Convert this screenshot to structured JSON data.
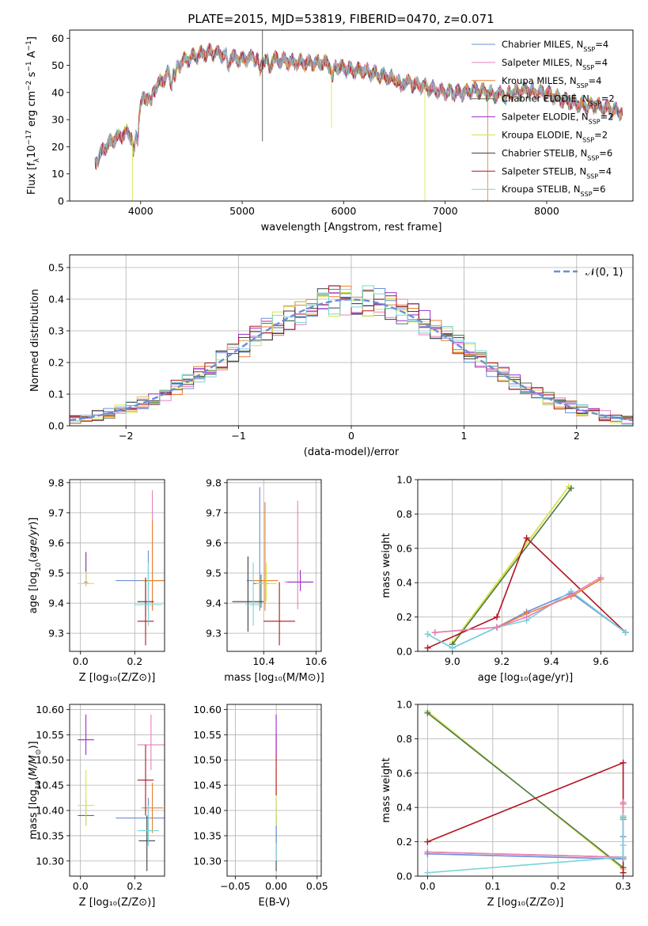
{
  "figure": {
    "title": "PLATE=2015, MJD=53819, FIBERID=0470, z=0.071"
  },
  "colors": {
    "Chabrier MILES": "#6c8ed6",
    "Salpeter MILES": "#e77fbe",
    "Kroupa MILES": "#e8802e",
    "Chabrier ELODIE": "#4e7a48",
    "Salpeter ELODIE": "#9b2bc6",
    "Kroupa ELODIE": "#d7e24a",
    "Chabrier STELIB": "#3d3d3d",
    "Salpeter STELIB": "#b3131f",
    "Kroupa STELIB": "#78d4d8"
  },
  "chart_data": [
    {
      "id": "spectrum",
      "type": "line",
      "xlabel": "wavelength [Angstrom, rest frame]",
      "ylabel": "Flux [f_λ10^-17 erg cm^-2 s^-1 A^-1]",
      "xlim": [
        3300,
        8850
      ],
      "ylim": [
        0,
        63
      ],
      "xticks": [
        4000,
        5000,
        6000,
        7000,
        8000
      ],
      "yticks": [
        0,
        10,
        20,
        30,
        40,
        50,
        60
      ],
      "grid": false,
      "legend_position": "top-right",
      "legend": [
        {
          "label": "Chabrier MILES, N",
          "sub": "SSP",
          "tail": "=4",
          "model": "Chabrier MILES"
        },
        {
          "label": "Salpeter MILES, N",
          "sub": "SSP",
          "tail": "=4",
          "model": "Salpeter MILES"
        },
        {
          "label": "Kroupa MILES, N",
          "sub": "SSP",
          "tail": "=4",
          "model": "Kroupa MILES"
        },
        {
          "label": "Chabrier ELODIE, N",
          "sub": "SSP",
          "tail": "=2",
          "model": "Chabrier ELODIE"
        },
        {
          "label": "Salpeter ELODIE, N",
          "sub": "SSP",
          "tail": "=2",
          "model": "Salpeter ELODIE"
        },
        {
          "label": "Kroupa ELODIE, N",
          "sub": "SSP",
          "tail": "=2",
          "model": "Kroupa ELODIE"
        },
        {
          "label": "Chabrier STELIB, N",
          "sub": "SSP",
          "tail": "=6",
          "model": "Chabrier STELIB"
        },
        {
          "label": "Salpeter STELIB, N",
          "sub": "SSP",
          "tail": "=4",
          "model": "Salpeter STELIB"
        },
        {
          "label": "Kroupa STELIB, N",
          "sub": "SSP",
          "tail": "=6",
          "model": "Kroupa STELIB"
        }
      ],
      "continuum": [
        [
          3550,
          14
        ],
        [
          3650,
          20
        ],
        [
          3750,
          23
        ],
        [
          3850,
          25
        ],
        [
          3920,
          24
        ],
        [
          3960,
          28
        ],
        [
          4000,
          36
        ],
        [
          4100,
          40
        ],
        [
          4200,
          44
        ],
        [
          4300,
          48
        ],
        [
          4400,
          51
        ],
        [
          4500,
          53
        ],
        [
          4600,
          54
        ],
        [
          4700,
          55
        ],
        [
          4800,
          54
        ],
        [
          4900,
          53
        ],
        [
          5000,
          52
        ],
        [
          5100,
          53
        ],
        [
          5200,
          52
        ],
        [
          5300,
          52
        ],
        [
          5400,
          52
        ],
        [
          5500,
          51
        ],
        [
          5600,
          51
        ],
        [
          5700,
          51
        ],
        [
          5800,
          51
        ],
        [
          5900,
          50
        ],
        [
          6000,
          49
        ],
        [
          6100,
          48
        ],
        [
          6200,
          48
        ],
        [
          6300,
          47
        ],
        [
          6400,
          46
        ],
        [
          6500,
          45
        ],
        [
          6600,
          44
        ],
        [
          6700,
          43
        ],
        [
          6800,
          42
        ],
        [
          6900,
          41
        ],
        [
          7000,
          40
        ],
        [
          7100,
          40
        ],
        [
          7200,
          40
        ],
        [
          7300,
          41
        ],
        [
          7400,
          40
        ],
        [
          7500,
          39
        ],
        [
          7600,
          40
        ],
        [
          7700,
          40
        ],
        [
          7800,
          41
        ],
        [
          7900,
          40
        ],
        [
          8000,
          40
        ],
        [
          8100,
          38
        ],
        [
          8200,
          37
        ],
        [
          8300,
          36
        ],
        [
          8400,
          35
        ],
        [
          8500,
          35
        ],
        [
          8600,
          34
        ],
        [
          8700,
          33
        ]
      ],
      "spikes": [
        {
          "x": 3920,
          "y_low": 0,
          "model": "Kroupa ELODIE"
        },
        {
          "x": 5200,
          "y_high": 63,
          "y_low": 22,
          "model": "Chabrier STELIB"
        },
        {
          "x": 5880,
          "y_low": 27,
          "model": "Kroupa ELODIE"
        },
        {
          "x": 6800,
          "y_low": 0,
          "model": "Kroupa ELODIE"
        },
        {
          "x": 7420,
          "y_low": 0,
          "model": "Kroupa MILES"
        }
      ]
    },
    {
      "id": "residuals",
      "type": "area",
      "xlabel": "(data-model)/error",
      "ylabel": "Normed distribution",
      "xlim": [
        -2.5,
        2.5
      ],
      "ylim": [
        0,
        0.54
      ],
      "xticks": [
        -2,
        -1,
        0,
        1,
        2
      ],
      "yticks": [
        0.0,
        0.1,
        0.2,
        0.3,
        0.4,
        0.5
      ],
      "grid": true,
      "legend_position": "top-right",
      "legend_label": "𝒩(0, 1)",
      "bin_width": 0.1,
      "gaussian": {
        "mu": 0,
        "sigma": 1,
        "color": "#6c8ed6"
      }
    },
    {
      "id": "age_vs_Z",
      "type": "scatter",
      "xlabel": "Z [log₁₀(Z/Z⊙)]",
      "ylabel": "age  [log₁₀(age/yr)]",
      "xlim": [
        -0.04,
        0.31
      ],
      "ylim": [
        9.24,
        9.81
      ],
      "xticks": [
        0.0,
        0.2
      ],
      "yticks": [
        9.3,
        9.4,
        9.5,
        9.6,
        9.7,
        9.8
      ],
      "grid": true,
      "points": [
        {
          "model": "Chabrier MILES",
          "x": 0.25,
          "xerr": 0.12,
          "y": 9.475,
          "yerr": [
            0.1,
            0.1
          ]
        },
        {
          "model": "Salpeter MILES",
          "x": 0.265,
          "xerr": 0.03,
          "y": 9.475,
          "yerr": [
            0.1,
            0.3
          ]
        },
        {
          "model": "Kroupa MILES",
          "x": 0.265,
          "xerr": 0.04,
          "y": 9.475,
          "yerr": [
            0.1,
            0.2
          ]
        },
        {
          "model": "Chabrier ELODIE",
          "x": 0.02,
          "xerr": 0.01,
          "y": 9.465,
          "yerr": [
            0.01,
            0.1
          ]
        },
        {
          "model": "Salpeter ELODIE",
          "x": 0.02,
          "xerr": 0.005,
          "y": 9.47,
          "yerr": [
            0.01,
            0.1
          ]
        },
        {
          "model": "Kroupa ELODIE",
          "x": 0.02,
          "xerr": 0.03,
          "y": 9.465,
          "yerr": [
            0.01,
            0.04
          ]
        },
        {
          "model": "Chabrier STELIB",
          "x": 0.24,
          "xerr": 0.03,
          "y": 9.405,
          "yerr": [
            0.05,
            0.08
          ]
        },
        {
          "model": "Salpeter STELIB",
          "x": 0.24,
          "xerr": 0.03,
          "y": 9.34,
          "yerr": [
            0.08,
            0.12
          ]
        },
        {
          "model": "Kroupa STELIB",
          "x": 0.25,
          "xerr": 0.05,
          "y": 9.395,
          "yerr": [
            0.07,
            0.14
          ]
        }
      ]
    },
    {
      "id": "age_vs_mass",
      "type": "scatter",
      "xlabel": "mass [log₁₀(M/M⊙)]",
      "ylabel": "",
      "xlim": [
        10.26,
        10.62
      ],
      "ylim": [
        9.24,
        9.81
      ],
      "xticks": [
        10.4,
        10.6
      ],
      "yticks": [
        9.3,
        9.4,
        9.5,
        9.6,
        9.7,
        9.8
      ],
      "grid": true,
      "points": [
        {
          "model": "Chabrier MILES",
          "x": 10.385,
          "xerr": 0.05,
          "y": 9.475,
          "yerr": [
            0.1,
            0.31
          ]
        },
        {
          "model": "Salpeter MILES",
          "x": 10.53,
          "xerr": 0.05,
          "y": 9.47,
          "yerr": [
            0.09,
            0.27
          ]
        },
        {
          "model": "Kroupa MILES",
          "x": 10.405,
          "xerr": 0.05,
          "y": 9.475,
          "yerr": [
            0.1,
            0.26
          ]
        },
        {
          "model": "Chabrier ELODIE",
          "x": 10.39,
          "xerr": 0.03,
          "y": 9.465,
          "yerr": [
            0.08,
            0.03
          ]
        },
        {
          "model": "Salpeter ELODIE",
          "x": 10.54,
          "xerr": 0.05,
          "y": 9.47,
          "yerr": [
            0.03,
            0.04
          ]
        },
        {
          "model": "Kroupa ELODIE",
          "x": 10.41,
          "xerr": 0.04,
          "y": 9.465,
          "yerr": [
            0.06,
            0.07
          ]
        },
        {
          "model": "Chabrier STELIB",
          "x": 10.34,
          "xerr": 0.06,
          "y": 9.405,
          "yerr": [
            0.1,
            0.15
          ]
        },
        {
          "model": "Salpeter STELIB",
          "x": 10.46,
          "xerr": 0.06,
          "y": 9.34,
          "yerr": [
            0.08,
            0.13
          ]
        },
        {
          "model": "Kroupa STELIB",
          "x": 10.36,
          "xerr": 0.03,
          "y": 9.395,
          "yerr": [
            0.07,
            0.14
          ]
        }
      ]
    },
    {
      "id": "weight_vs_age",
      "type": "line",
      "xlabel": "age  [log₁₀(age/yr)]",
      "ylabel": "mass weight",
      "xlim": [
        8.86,
        9.73
      ],
      "ylim": [
        0,
        1.0
      ],
      "xticks": [
        9.0,
        9.2,
        9.4,
        9.6
      ],
      "yticks": [
        0.0,
        0.2,
        0.4,
        0.6,
        0.8,
        1.0
      ],
      "grid": true,
      "series": [
        {
          "model": "Kroupa ELODIE",
          "x": [
            9.0,
            9.47,
            9.0
          ],
          "y": [
            0.04,
            0.96,
            0.05
          ]
        },
        {
          "model": "Chabrier ELODIE",
          "x": [
            9.0,
            9.48
          ],
          "y": [
            0.04,
            0.95
          ]
        },
        {
          "model": "Salpeter STELIB",
          "x": [
            8.9,
            9.18,
            9.3,
            9.7
          ],
          "y": [
            0.02,
            0.2,
            0.66,
            0.11
          ]
        },
        {
          "model": "Chabrier MILES",
          "x": [
            8.9,
            9.0,
            9.18,
            9.3,
            9.48,
            9.7
          ],
          "y": [
            0.1,
            0.02,
            0.14,
            0.23,
            0.34,
            0.11
          ]
        },
        {
          "model": "Kroupa STELIB",
          "x": [
            8.9,
            9.0,
            9.18,
            9.3,
            9.48,
            9.7
          ],
          "y": [
            0.1,
            0.02,
            0.14,
            0.18,
            0.35,
            0.11
          ]
        },
        {
          "model": "Kroupa MILES",
          "x": [
            8.93,
            9.18,
            9.3,
            9.48,
            9.6
          ],
          "y": [
            0.11,
            0.14,
            0.22,
            0.32,
            0.42
          ]
        },
        {
          "model": "Salpeter MILES",
          "x": [
            8.93,
            9.18,
            9.3,
            9.48,
            9.6
          ],
          "y": [
            0.11,
            0.14,
            0.2,
            0.33,
            0.43
          ]
        }
      ]
    },
    {
      "id": "mass_vs_Z",
      "type": "scatter",
      "xlabel": "Z [log₁₀(Z/Z⊙)]",
      "ylabel": "mass [log₁₀(M/M⊙)]",
      "xlim": [
        -0.04,
        0.31
      ],
      "ylim": [
        10.27,
        10.61
      ],
      "xticks": [
        0.0,
        0.2
      ],
      "yticks": [
        10.3,
        10.35,
        10.4,
        10.45,
        10.5,
        10.55,
        10.6
      ],
      "grid": true,
      "points": [
        {
          "model": "Chabrier MILES",
          "x": 0.25,
          "xerr": 0.12,
          "y": 10.385,
          "yerr": [
            0.05,
            0.04
          ]
        },
        {
          "model": "Salpeter MILES",
          "x": 0.26,
          "xerr": 0.05,
          "y": 10.53,
          "yerr": [
            0.05,
            0.06
          ]
        },
        {
          "model": "Kroupa MILES",
          "x": 0.265,
          "xerr": 0.04,
          "y": 10.405,
          "yerr": [
            0.05,
            0.05
          ]
        },
        {
          "model": "Chabrier ELODIE",
          "x": 0.02,
          "xerr": 0.03,
          "y": 10.39,
          "yerr": [
            0.02,
            0.03
          ]
        },
        {
          "model": "Salpeter ELODIE",
          "x": 0.02,
          "xerr": 0.03,
          "y": 10.54,
          "yerr": [
            0.03,
            0.05
          ]
        },
        {
          "model": "Kroupa ELODIE",
          "x": 0.02,
          "xerr": 0.03,
          "y": 10.41,
          "yerr": [
            0.04,
            0.07
          ]
        },
        {
          "model": "Chabrier STELIB",
          "x": 0.245,
          "xerr": 0.03,
          "y": 10.34,
          "yerr": [
            0.06,
            0.05
          ]
        },
        {
          "model": "Salpeter STELIB",
          "x": 0.24,
          "xerr": 0.03,
          "y": 10.46,
          "yerr": [
            0.07,
            0.07
          ]
        },
        {
          "model": "Kroupa STELIB",
          "x": 0.25,
          "xerr": 0.04,
          "y": 10.36,
          "yerr": [
            0.03,
            0.05
          ]
        }
      ]
    },
    {
      "id": "mass_vs_ebv",
      "type": "scatter",
      "xlabel": "E(B-V)",
      "ylabel": "",
      "xlim": [
        -0.06,
        0.055
      ],
      "ylim": [
        10.27,
        10.61
      ],
      "xticks": [
        -0.05,
        0.0,
        0.05
      ],
      "xtick_labels": [
        "−0.05",
        "0.00",
        "0.05"
      ],
      "yticks": [
        10.3,
        10.35,
        10.4,
        10.45,
        10.5,
        10.55,
        10.6
      ],
      "grid": true,
      "points": [
        {
          "model": "Chabrier STELIB",
          "x": 0.0,
          "y": 10.34,
          "yerr": [
            0.06,
            0.05
          ]
        },
        {
          "model": "Kroupa STELIB",
          "x": 0.0,
          "y": 10.36,
          "yerr": [
            0.06,
            0.05
          ]
        },
        {
          "model": "Chabrier MILES",
          "x": 0.0,
          "y": 10.385,
          "yerr": [
            0.05,
            0.04
          ]
        },
        {
          "model": "Kroupa ELODIE",
          "x": 0.0,
          "y": 10.41,
          "yerr": [
            0.04,
            0.07
          ]
        },
        {
          "model": "Salpeter STELIB",
          "x": 0.0,
          "y": 10.46,
          "yerr": [
            0.03,
            0.09
          ]
        },
        {
          "model": "Salpeter ELODIE",
          "x": 0.0,
          "y": 10.54,
          "yerr": [
            0.03,
            0.05
          ]
        }
      ]
    },
    {
      "id": "weight_vs_Z",
      "type": "line",
      "xlabel": "Z [log₁₀(Z/Z⊙)]",
      "ylabel": "mass weight",
      "xlim": [
        -0.015,
        0.315
      ],
      "ylim": [
        0,
        1.0
      ],
      "xticks": [
        0.0,
        0.1,
        0.2,
        0.3
      ],
      "yticks": [
        0.0,
        0.2,
        0.4,
        0.6,
        0.8,
        1.0
      ],
      "grid": true,
      "series": [
        {
          "model": "Kroupa ELODIE",
          "x": [
            0.0,
            0.3
          ],
          "y": [
            0.96,
            0.04
          ]
        },
        {
          "model": "Chabrier ELODIE",
          "x": [
            0.0,
            0.3
          ],
          "y": [
            0.95,
            0.05
          ]
        },
        {
          "model": "Salpeter STELIB",
          "x": [
            0.0,
            0.3,
            0.3,
            0.3
          ],
          "y": [
            0.2,
            0.66,
            0.11,
            0.02
          ]
        },
        {
          "model": "Kroupa MILES",
          "x": [
            0.0,
            0.3,
            0.3,
            0.3
          ],
          "y": [
            0.14,
            0.11,
            0.42,
            0.33
          ]
        },
        {
          "model": "Salpeter MILES",
          "x": [
            0.0,
            0.3,
            0.3
          ],
          "y": [
            0.14,
            0.11,
            0.43
          ]
        },
        {
          "model": "Chabrier MILES",
          "x": [
            0.0,
            0.3,
            0.3,
            0.3
          ],
          "y": [
            0.13,
            0.1,
            0.34,
            0.23
          ]
        },
        {
          "model": "Kroupa STELIB",
          "x": [
            0.0,
            0.3,
            0.3,
            0.3
          ],
          "y": [
            0.02,
            0.11,
            0.35,
            0.18
          ]
        }
      ]
    }
  ]
}
